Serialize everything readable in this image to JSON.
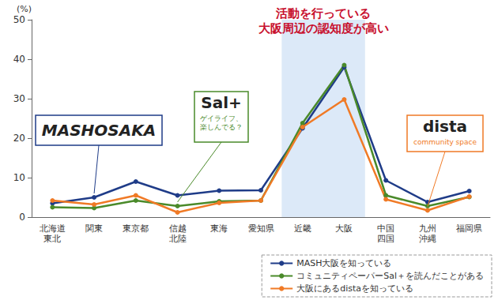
{
  "chart_data": {
    "type": "line",
    "y_label": "(%)",
    "categories": [
      "北海道\n東北",
      "関東",
      "東京都",
      "信越\n北陸",
      "東海",
      "愛知県",
      "近畿",
      "大阪",
      "中国\n四国",
      "九州\n沖縄",
      "福岡県"
    ],
    "series": [
      {
        "name": "MASH大阪を知っている",
        "color": "#1f3c88",
        "marker": "circle",
        "values": [
          3.5,
          5.0,
          9.0,
          5.5,
          6.7,
          6.8,
          22.5,
          38.0,
          9.3,
          3.8,
          6.6
        ]
      },
      {
        "name": "コミュニティペーパーSal＋を読んだことがある",
        "color": "#4a8a2a",
        "marker": "circle",
        "values": [
          2.5,
          2.3,
          4.2,
          2.8,
          4.0,
          4.2,
          23.8,
          38.5,
          5.5,
          2.8,
          5.1
        ]
      },
      {
        "name": "大阪にあるdistaを知っている",
        "color": "#f07a26",
        "marker": "circle",
        "values": [
          4.2,
          3.2,
          5.5,
          1.2,
          3.6,
          4.2,
          22.8,
          29.8,
          4.5,
          1.7,
          5.2
        ]
      }
    ],
    "ylim": [
      0,
      50
    ],
    "yticks": [
      0,
      10,
      20,
      30,
      40,
      50
    ],
    "grid": false,
    "legend": "bottom-right",
    "annotations": [
      {
        "text": "活動を行っている\n大阪周辺の認知度が高い",
        "from": "近畿",
        "to": "大阪"
      },
      {
        "text": "MASHOSAKA",
        "target": "関東"
      },
      {
        "text": "Sal+",
        "subtext": "ゲイライフ、\n楽しんでる？",
        "target": "信越\n北陸"
      },
      {
        "text": "dista",
        "subtext": "community space",
        "target": "九州\n沖縄"
      }
    ]
  }
}
